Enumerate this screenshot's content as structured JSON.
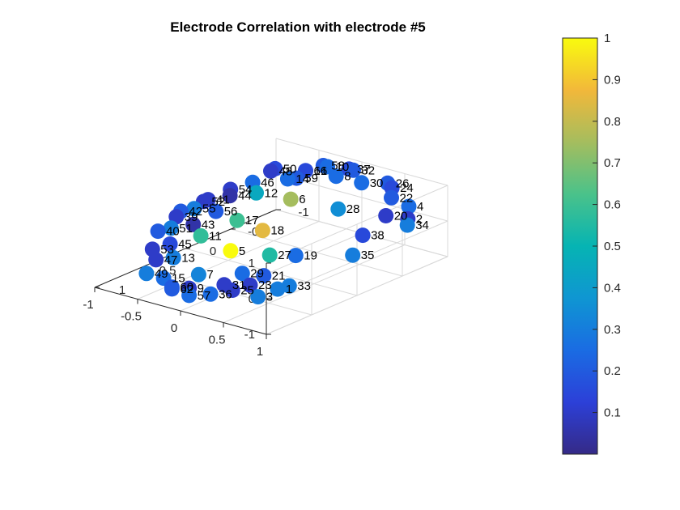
{
  "chart_data": {
    "type": "scatter",
    "title": "Electrode Correlation with electrode #5",
    "xlim": [
      -1,
      1
    ],
    "ylim": [
      -1,
      1
    ],
    "zlim": [
      -1,
      1
    ],
    "x_ticks": [
      "1",
      "0.5",
      "0",
      "-0.5",
      "-1"
    ],
    "y_ticks": [
      "1",
      "0.5",
      "0",
      "-0.5",
      "-1"
    ],
    "z_ticks": [
      "1",
      "0",
      "-1"
    ],
    "colorbar": {
      "range": [
        0,
        1
      ],
      "ticks": [
        "0.1",
        "0.2",
        "0.3",
        "0.4",
        "0.5",
        "0.6",
        "0.7",
        "0.8",
        "0.9",
        "1"
      ]
    },
    "grid": true,
    "points": [
      {
        "label": "1",
        "x": 0.8,
        "y": 0.92,
        "z": 0.0,
        "v": 0.3
      },
      {
        "label": "2",
        "x": -0.75,
        "y": 0.8,
        "z": 0.2,
        "v": 0.1
      },
      {
        "label": "3",
        "x": 0.95,
        "y": 0.85,
        "z": -0.1,
        "v": 0.3
      },
      {
        "label": "4",
        "x": -0.95,
        "y": 0.6,
        "z": 0.2,
        "v": 0.25
      },
      {
        "label": "5",
        "x": 0.4,
        "y": -0.05,
        "z": 0.0,
        "v": 1.0
      },
      {
        "label": "6",
        "x": -0.5,
        "y": -0.3,
        "z": 0.3,
        "v": 0.75
      },
      {
        "label": "7",
        "x": 0.8,
        "y": 0.0,
        "z": -0.2,
        "v": 0.32
      },
      {
        "label": "8",
        "x": -1.0,
        "y": -0.3,
        "z": 0.4,
        "v": 0.25
      },
      {
        "label": "9",
        "x": 1.0,
        "y": 0.1,
        "z": -0.3,
        "v": 0.1
      },
      {
        "label": "10",
        "x": -1.0,
        "y": -0.4,
        "z": 0.6,
        "v": 0.25
      },
      {
        "label": "11",
        "x": 0.35,
        "y": -0.45,
        "z": 0.1,
        "v": 0.58
      },
      {
        "label": "12",
        "x": -0.45,
        "y": -0.65,
        "z": 0.3,
        "v": 0.45
      },
      {
        "label": "13",
        "x": 0.7,
        "y": -0.4,
        "z": -0.1,
        "v": 0.3
      },
      {
        "label": "14",
        "x": -0.75,
        "y": -0.6,
        "z": 0.4,
        "v": 0.25
      },
      {
        "label": "15",
        "x": 0.95,
        "y": -0.25,
        "z": -0.3,
        "v": 0.25
      },
      {
        "label": "16",
        "x": -0.9,
        "y": -0.55,
        "z": 0.5,
        "v": 0.1
      },
      {
        "label": "17",
        "x": -0.05,
        "y": -0.45,
        "z": 0.1,
        "v": 0.6
      },
      {
        "label": "18",
        "x": 0.0,
        "y": -0.1,
        "z": 0.1,
        "v": 0.85
      },
      {
        "label": "19",
        "x": 0.25,
        "y": 0.55,
        "z": 0.1,
        "v": 0.25
      },
      {
        "label": "20",
        "x": -0.65,
        "y": 0.65,
        "z": 0.3,
        "v": 0.1
      },
      {
        "label": "21",
        "x": 0.65,
        "y": 0.6,
        "z": 0.0,
        "v": 0.2
      },
      {
        "label": "22",
        "x": -0.9,
        "y": 0.45,
        "z": 0.4,
        "v": 0.2
      },
      {
        "label": "23",
        "x": 0.8,
        "y": 0.6,
        "z": -0.1,
        "v": 0.1
      },
      {
        "label": "24",
        "x": -1.0,
        "y": 0.35,
        "z": 0.5,
        "v": 0.15
      },
      {
        "label": "25",
        "x": 0.9,
        "y": 0.5,
        "z": -0.2,
        "v": 0.1
      },
      {
        "label": "26",
        "x": -1.0,
        "y": 0.3,
        "z": 0.6,
        "v": 0.2
      },
      {
        "label": "27",
        "x": 0.3,
        "y": 0.3,
        "z": 0.0,
        "v": 0.55
      },
      {
        "label": "28",
        "x": -0.55,
        "y": 0.2,
        "z": 0.3,
        "v": 0.35
      },
      {
        "label": "29",
        "x": 0.65,
        "y": 0.35,
        "z": -0.1,
        "v": 0.25
      },
      {
        "label": "30",
        "x": -0.95,
        "y": 0.05,
        "z": 0.5,
        "v": 0.25
      },
      {
        "label": "31",
        "x": 0.85,
        "y": 0.35,
        "z": -0.2,
        "v": 0.1
      },
      {
        "label": "32",
        "x": -1.0,
        "y": -0.1,
        "z": 0.7,
        "v": 0.2
      },
      {
        "label": "33",
        "x": 0.7,
        "y": 0.95,
        "z": 0.0,
        "v": 0.3
      },
      {
        "label": "34",
        "x": -0.65,
        "y": 0.9,
        "z": 0.2,
        "v": 0.3
      },
      {
        "label": "35",
        "x": 0.0,
        "y": 0.95,
        "z": 0.1,
        "v": 0.3
      },
      {
        "label": "36",
        "x": 1.0,
        "y": 0.35,
        "z": -0.3,
        "v": 0.25
      },
      {
        "label": "37",
        "x": -1.0,
        "y": -0.15,
        "z": 0.7,
        "v": 0.15
      },
      {
        "label": "38",
        "x": -0.3,
        "y": 0.75,
        "z": 0.2,
        "v": 0.15
      },
      {
        "label": "39",
        "x": 0.1,
        "y": -1.0,
        "z": 0.0,
        "v": 0.1
      },
      {
        "label": "40",
        "x": 0.35,
        "y": -0.95,
        "z": -0.1,
        "v": 0.2
      },
      {
        "label": "41",
        "x": -0.25,
        "y": -1.0,
        "z": 0.1,
        "v": 0.1
      },
      {
        "label": "42",
        "x": 0.05,
        "y": -1.0,
        "z": 0.1,
        "v": 0.2
      },
      {
        "label": "43",
        "x": 0.15,
        "y": -0.75,
        "z": 0.0,
        "v": 0.05
      },
      {
        "label": "44",
        "x": -0.35,
        "y": -0.85,
        "z": 0.2,
        "v": 0.05
      },
      {
        "label": "45",
        "x": 0.5,
        "y": -0.65,
        "z": -0.1,
        "v": 0.15
      },
      {
        "label": "46",
        "x": -0.6,
        "y": -0.85,
        "z": 0.3,
        "v": 0.25
      },
      {
        "label": "47",
        "x": 0.75,
        "y": -0.55,
        "z": -0.2,
        "v": 0.1
      },
      {
        "label": "48",
        "x": -0.8,
        "y": -0.85,
        "z": 0.4,
        "v": 0.1
      },
      {
        "label": "49",
        "x": 0.95,
        "y": -0.45,
        "z": -0.3,
        "v": 0.3
      },
      {
        "label": "50",
        "x": -0.8,
        "y": -0.8,
        "z": 0.5,
        "v": 0.15
      },
      {
        "label": "51",
        "x": 0.3,
        "y": -0.85,
        "z": 0.0,
        "v": 0.3
      },
      {
        "label": "52",
        "x": -0.2,
        "y": -1.0,
        "z": 0.1,
        "v": 0.1
      },
      {
        "label": "53",
        "x": 0.6,
        "y": -0.75,
        "z": -0.2,
        "v": 0.1
      },
      {
        "label": "54",
        "x": -0.45,
        "y": -0.95,
        "z": 0.2,
        "v": 0.1
      },
      {
        "label": "55",
        "x": -0.05,
        "y": -0.95,
        "z": 0.1,
        "v": 0.3
      },
      {
        "label": "56",
        "x": -0.1,
        "y": -0.75,
        "z": 0.1,
        "v": 0.2
      },
      {
        "label": "57",
        "x": 1.0,
        "y": 0.1,
        "z": -0.5,
        "v": 0.25
      },
      {
        "label": "58",
        "x": -1.0,
        "y": -0.45,
        "z": 0.6,
        "v": 0.2
      },
      {
        "label": "59",
        "x": -0.8,
        "y": -0.55,
        "z": 0.4,
        "v": 0.2
      },
      {
        "label": "60",
        "x": 1.0,
        "y": -0.1,
        "z": -0.4,
        "v": 0.2
      },
      {
        "label": "61",
        "x": -0.9,
        "y": -0.55,
        "z": 0.5,
        "v": 0.15
      },
      {
        "label": "62",
        "x": 1.0,
        "y": -0.1,
        "z": -0.45,
        "v": 0.2
      }
    ]
  }
}
